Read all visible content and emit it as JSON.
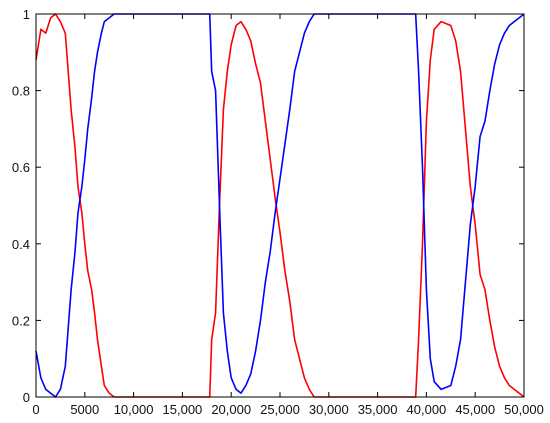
{
  "chart_data": {
    "type": "line",
    "title": "",
    "xlabel": "",
    "ylabel": "",
    "xlim": [
      0,
      50000
    ],
    "ylim": [
      0,
      1
    ],
    "grid": false,
    "x_ticks": [
      0,
      5000,
      10000,
      15000,
      20000,
      25000,
      30000,
      35000,
      40000,
      45000,
      50000
    ],
    "x_tick_labels": [
      "0",
      "5000",
      "10,000",
      "15,000",
      "20,000",
      "25,000",
      "30,000",
      "35,000",
      "40,000",
      "45,000",
      "50,000"
    ],
    "y_ticks": [
      0,
      0.2,
      0.4,
      0.6,
      0.8,
      1
    ],
    "y_tick_labels": [
      "0",
      "0.2",
      "0.4",
      "0.6",
      "0.8",
      "1"
    ],
    "series": [
      {
        "color": "#ff0000",
        "points": [
          [
            0,
            0.88
          ],
          [
            500,
            0.96
          ],
          [
            1000,
            0.95
          ],
          [
            1500,
            0.99
          ],
          [
            2000,
            1.0
          ],
          [
            2500,
            0.98
          ],
          [
            3000,
            0.95
          ],
          [
            3300,
            0.85
          ],
          [
            3600,
            0.75
          ],
          [
            4000,
            0.65
          ],
          [
            4300,
            0.55
          ],
          [
            4700,
            0.48
          ],
          [
            5000,
            0.4
          ],
          [
            5300,
            0.33
          ],
          [
            5700,
            0.28
          ],
          [
            6000,
            0.22
          ],
          [
            6300,
            0.15
          ],
          [
            6700,
            0.08
          ],
          [
            7000,
            0.03
          ],
          [
            7500,
            0.01
          ],
          [
            8000,
            0.0
          ],
          [
            9000,
            0.0
          ],
          [
            12000,
            0.0
          ],
          [
            15000,
            0.0
          ],
          [
            17800,
            0.0
          ],
          [
            18000,
            0.15
          ],
          [
            18400,
            0.22
          ],
          [
            18800,
            0.5
          ],
          [
            19200,
            0.75
          ],
          [
            19600,
            0.85
          ],
          [
            20000,
            0.92
          ],
          [
            20500,
            0.97
          ],
          [
            21000,
            0.98
          ],
          [
            21500,
            0.96
          ],
          [
            22000,
            0.93
          ],
          [
            22500,
            0.87
          ],
          [
            23000,
            0.82
          ],
          [
            23500,
            0.72
          ],
          [
            24000,
            0.62
          ],
          [
            24500,
            0.52
          ],
          [
            25000,
            0.43
          ],
          [
            25500,
            0.33
          ],
          [
            26000,
            0.25
          ],
          [
            26500,
            0.15
          ],
          [
            27000,
            0.1
          ],
          [
            27500,
            0.05
          ],
          [
            28000,
            0.02
          ],
          [
            28500,
            0.0
          ],
          [
            30000,
            0.0
          ],
          [
            35000,
            0.0
          ],
          [
            38900,
            0.0
          ],
          [
            39200,
            0.15
          ],
          [
            39600,
            0.4
          ],
          [
            40000,
            0.72
          ],
          [
            40400,
            0.88
          ],
          [
            40800,
            0.96
          ],
          [
            41500,
            0.98
          ],
          [
            42500,
            0.97
          ],
          [
            43000,
            0.93
          ],
          [
            43500,
            0.85
          ],
          [
            44000,
            0.7
          ],
          [
            44500,
            0.55
          ],
          [
            45000,
            0.45
          ],
          [
            45500,
            0.32
          ],
          [
            46000,
            0.28
          ],
          [
            46500,
            0.2
          ],
          [
            47000,
            0.13
          ],
          [
            47500,
            0.08
          ],
          [
            48000,
            0.05
          ],
          [
            48500,
            0.03
          ],
          [
            49000,
            0.02
          ],
          [
            49500,
            0.01
          ],
          [
            50000,
            0.0
          ]
        ]
      },
      {
        "color": "#0000ff",
        "points": [
          [
            0,
            0.12
          ],
          [
            500,
            0.05
          ],
          [
            1000,
            0.02
          ],
          [
            1500,
            0.01
          ],
          [
            2000,
            0.0
          ],
          [
            2500,
            0.02
          ],
          [
            3000,
            0.08
          ],
          [
            3300,
            0.18
          ],
          [
            3600,
            0.28
          ],
          [
            4000,
            0.38
          ],
          [
            4300,
            0.48
          ],
          [
            4700,
            0.55
          ],
          [
            5000,
            0.62
          ],
          [
            5300,
            0.7
          ],
          [
            5700,
            0.78
          ],
          [
            6000,
            0.85
          ],
          [
            6300,
            0.9
          ],
          [
            6700,
            0.95
          ],
          [
            7000,
            0.98
          ],
          [
            7500,
            0.99
          ],
          [
            8000,
            1.0
          ],
          [
            9000,
            1.0
          ],
          [
            12000,
            1.0
          ],
          [
            15000,
            1.0
          ],
          [
            17800,
            1.0
          ],
          [
            18000,
            0.85
          ],
          [
            18400,
            0.8
          ],
          [
            18800,
            0.5
          ],
          [
            19200,
            0.22
          ],
          [
            19600,
            0.12
          ],
          [
            20000,
            0.05
          ],
          [
            20500,
            0.02
          ],
          [
            21000,
            0.01
          ],
          [
            21500,
            0.03
          ],
          [
            22000,
            0.06
          ],
          [
            22500,
            0.12
          ],
          [
            23000,
            0.2
          ],
          [
            23500,
            0.3
          ],
          [
            24000,
            0.38
          ],
          [
            24500,
            0.48
          ],
          [
            25000,
            0.57
          ],
          [
            25500,
            0.66
          ],
          [
            26000,
            0.75
          ],
          [
            26500,
            0.85
          ],
          [
            27000,
            0.9
          ],
          [
            27500,
            0.95
          ],
          [
            28000,
            0.98
          ],
          [
            28500,
            1.0
          ],
          [
            30000,
            1.0
          ],
          [
            35000,
            1.0
          ],
          [
            38900,
            1.0
          ],
          [
            39200,
            0.85
          ],
          [
            39600,
            0.6
          ],
          [
            40000,
            0.28
          ],
          [
            40400,
            0.1
          ],
          [
            40800,
            0.04
          ],
          [
            41500,
            0.02
          ],
          [
            42500,
            0.03
          ],
          [
            43000,
            0.08
          ],
          [
            43500,
            0.15
          ],
          [
            44000,
            0.3
          ],
          [
            44500,
            0.45
          ],
          [
            45000,
            0.55
          ],
          [
            45500,
            0.68
          ],
          [
            46000,
            0.72
          ],
          [
            46500,
            0.8
          ],
          [
            47000,
            0.87
          ],
          [
            47500,
            0.92
          ],
          [
            48000,
            0.95
          ],
          [
            48500,
            0.97
          ],
          [
            49000,
            0.98
          ],
          [
            49500,
            0.99
          ],
          [
            50000,
            1.0
          ]
        ]
      }
    ]
  }
}
